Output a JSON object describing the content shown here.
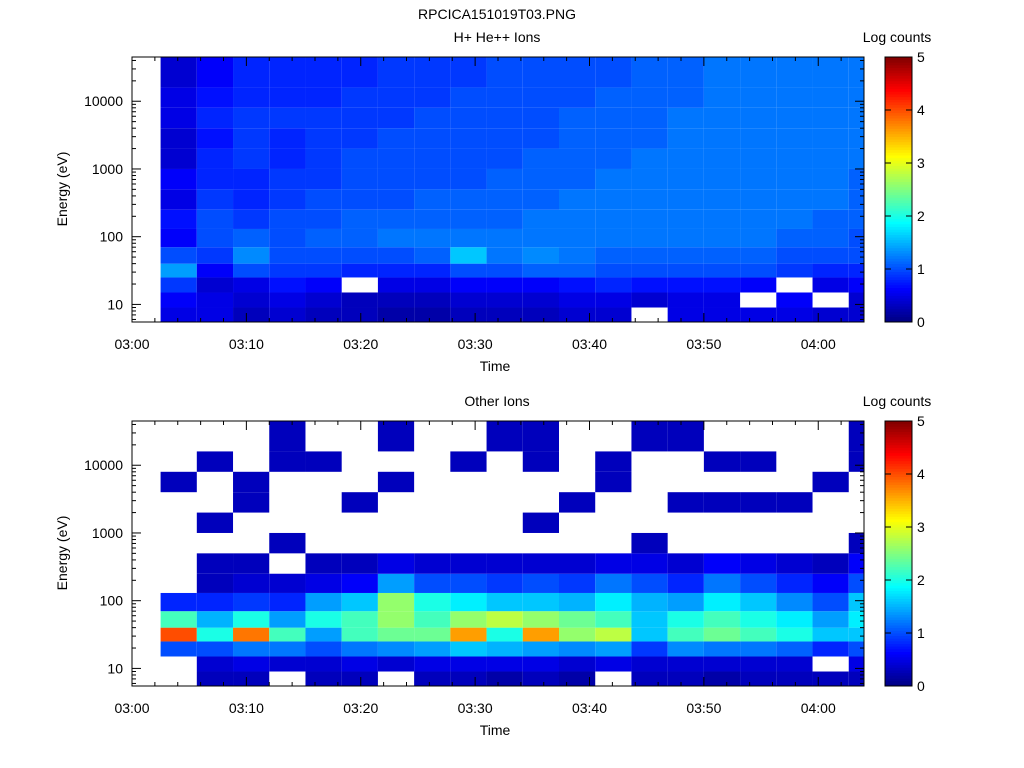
{
  "figure_title": "RPCICA151019T03.PNG",
  "colorscale": {
    "stops": [
      "#00007f",
      "#0000ff",
      "#0080ff",
      "#00ffff",
      "#80ff80",
      "#ffff00",
      "#ff8000",
      "#ff0000",
      "#800000"
    ]
  },
  "chart_data": [
    {
      "type": "heatmap",
      "title": "H+ He++ Ions",
      "xlabel": "Time",
      "ylabel": "Energy (eV)",
      "yscale": "log",
      "ylim": [
        5.5,
        45000
      ],
      "xlim_minutes_after_0300": [
        0,
        64
      ],
      "x_ticks": [
        "03:00",
        "03:10",
        "03:20",
        "03:30",
        "03:40",
        "03:50",
        "04:00"
      ],
      "y_ticks": [
        "10",
        "100",
        "1000",
        "10000"
      ],
      "colorbar": {
        "label": "Log counts",
        "range": [
          0,
          5
        ],
        "ticks": [
          "0",
          "1",
          "2",
          "3",
          "4",
          "5"
        ]
      },
      "time_bins": [
        "03:02:30",
        "03:05:40",
        "03:08:50",
        "03:12:00",
        "03:15:10",
        "03:18:20",
        "03:21:30",
        "03:24:40",
        "03:27:50",
        "03:31:00",
        "03:34:10",
        "03:37:20",
        "03:40:30",
        "03:43:40",
        "03:46:50",
        "03:50:00",
        "03:53:10",
        "03:56:20",
        "03:59:30",
        "04:02:40"
      ],
      "energy_band_edges_eV": [
        5.5,
        9,
        15,
        25,
        40,
        70,
        130,
        250,
        500,
        1000,
        2000,
        4000,
        8000,
        16000,
        45000
      ],
      "log_counts": [
        [
          0.5,
          0.6,
          0.9,
          1.4,
          1.0,
          0.6,
          0.7,
          0.5,
          0.6,
          0.4,
          0.4,
          0.5,
          0.5,
          0.4
        ],
        [
          0.5,
          0.5,
          0.4,
          0.6,
          0.9,
          1.0,
          1.0,
          0.9,
          0.8,
          0.8,
          0.7,
          0.8,
          0.7,
          0.6
        ],
        [
          0.3,
          0.4,
          0.5,
          1.0,
          1.3,
          1.1,
          0.9,
          0.8,
          0.8,
          0.9,
          0.9,
          0.9,
          0.8,
          0.8
        ],
        [
          0.4,
          0.5,
          0.7,
          0.9,
          1.0,
          1.0,
          1.0,
          0.9,
          0.9,
          0.8,
          0.8,
          0.9,
          0.8,
          0.8
        ],
        [
          0.3,
          0.4,
          0.6,
          0.9,
          1.0,
          1.1,
          1.0,
          1.0,
          0.9,
          0.9,
          0.9,
          0.9,
          0.8,
          0.8
        ],
        [
          0.3,
          0.3,
          null,
          0.8,
          1.0,
          1.1,
          1.1,
          1.0,
          1.0,
          1.0,
          0.9,
          0.9,
          0.9,
          0.8
        ],
        [
          0.2,
          0.3,
          0.5,
          0.8,
          1.0,
          1.2,
          1.1,
          1.0,
          1.0,
          1.0,
          1.0,
          0.9,
          0.9,
          0.9
        ],
        [
          0.2,
          0.3,
          0.5,
          0.8,
          1.1,
          1.2,
          1.1,
          1.1,
          1.0,
          1.0,
          1.0,
          1.0,
          0.9,
          0.9
        ],
        [
          0.3,
          0.4,
          0.6,
          1.0,
          1.6,
          1.2,
          1.1,
          1.1,
          1.0,
          1.0,
          1.0,
          1.0,
          1.0,
          0.9
        ],
        [
          0.3,
          0.4,
          0.6,
          1.0,
          1.2,
          1.2,
          1.1,
          1.1,
          1.1,
          1.0,
          1.0,
          1.0,
          1.0,
          1.0
        ],
        [
          0.3,
          0.4,
          0.6,
          1.1,
          1.3,
          1.2,
          1.2,
          1.1,
          1.1,
          1.1,
          1.0,
          1.0,
          1.0,
          1.0
        ],
        [
          0.4,
          0.5,
          0.7,
          1.1,
          1.2,
          1.2,
          1.2,
          1.2,
          1.1,
          1.1,
          1.1,
          1.1,
          1.0,
          1.0
        ],
        [
          0.4,
          0.5,
          0.8,
          1.0,
          1.1,
          1.2,
          1.2,
          1.2,
          1.2,
          1.1,
          1.1,
          1.1,
          1.1,
          1.0
        ],
        [
          null,
          0.4,
          0.7,
          1.0,
          1.1,
          1.2,
          1.2,
          1.2,
          1.2,
          1.2,
          1.1,
          1.1,
          1.1,
          1.1
        ],
        [
          0.5,
          0.5,
          0.7,
          1.0,
          1.1,
          1.2,
          1.2,
          1.2,
          1.2,
          1.2,
          1.2,
          1.2,
          1.1,
          1.1
        ],
        [
          0.5,
          0.5,
          0.7,
          1.0,
          1.1,
          1.2,
          1.2,
          1.2,
          1.2,
          1.2,
          1.2,
          1.2,
          1.2,
          1.2
        ],
        [
          0.5,
          null,
          0.6,
          1.0,
          1.1,
          1.2,
          1.2,
          1.2,
          1.2,
          1.2,
          1.2,
          1.2,
          1.2,
          1.2
        ],
        [
          0.5,
          0.6,
          null,
          0.9,
          1.0,
          1.1,
          1.2,
          1.2,
          1.2,
          1.2,
          1.2,
          1.2,
          1.2,
          1.2
        ],
        [
          0.4,
          null,
          0.5,
          0.8,
          1.0,
          1.1,
          1.1,
          1.2,
          1.2,
          1.2,
          1.2,
          1.2,
          1.2,
          1.2
        ],
        [
          0.4,
          0.4,
          0.6,
          0.8,
          1.0,
          1.0,
          1.1,
          1.1,
          1.1,
          1.2,
          1.2,
          1.2,
          1.2,
          1.2
        ]
      ]
    },
    {
      "type": "heatmap",
      "title": "Other Ions",
      "xlabel": "Time",
      "ylabel": "Energy (eV)",
      "yscale": "log",
      "ylim": [
        5.5,
        45000
      ],
      "xlim_minutes_after_0300": [
        0,
        64
      ],
      "x_ticks": [
        "03:00",
        "03:10",
        "03:20",
        "03:30",
        "03:40",
        "03:50",
        "04:00"
      ],
      "y_ticks": [
        "10",
        "100",
        "1000",
        "10000"
      ],
      "colorbar": {
        "label": "Log counts",
        "range": [
          0,
          5
        ],
        "ticks": [
          "0",
          "1",
          "2",
          "3",
          "4",
          "5"
        ]
      },
      "time_bins": [
        "03:02:30",
        "03:05:40",
        "03:08:50",
        "03:12:00",
        "03:15:10",
        "03:18:20",
        "03:21:30",
        "03:24:40",
        "03:27:50",
        "03:31:00",
        "03:34:10",
        "03:37:20",
        "03:40:30",
        "03:43:40",
        "03:46:50",
        "03:50:00",
        "03:53:10",
        "03:56:20",
        "03:59:30",
        "04:02:40"
      ],
      "energy_band_edges_eV": [
        5.5,
        9,
        15,
        25,
        40,
        70,
        130,
        250,
        500,
        1000,
        2000,
        4000,
        8000,
        16000,
        45000
      ],
      "log_counts": [
        [
          null,
          null,
          1.0,
          4.0,
          2.2,
          0.8,
          null,
          null,
          null,
          null,
          null,
          0.3,
          null,
          null
        ],
        [
          0.3,
          0.4,
          1.0,
          2.0,
          1.5,
          0.8,
          0.3,
          0.3,
          null,
          0.3,
          null,
          null,
          0.3,
          null
        ],
        [
          0.3,
          0.5,
          1.2,
          3.8,
          2.0,
          0.9,
          0.4,
          0.3,
          null,
          null,
          0.3,
          0.3,
          null,
          null
        ],
        [
          null,
          0.4,
          1.2,
          2.2,
          1.4,
          0.8,
          0.4,
          null,
          0.3,
          null,
          null,
          null,
          0.3,
          0.3
        ],
        [
          0.3,
          0.4,
          1.0,
          1.4,
          2.0,
          1.4,
          0.5,
          0.3,
          null,
          null,
          null,
          null,
          0.3,
          null
        ],
        [
          0.3,
          0.5,
          1.2,
          2.2,
          2.2,
          1.6,
          0.6,
          0.3,
          null,
          null,
          0.3,
          null,
          null,
          null
        ],
        [
          null,
          0.4,
          1.3,
          2.4,
          2.6,
          2.6,
          1.4,
          0.5,
          null,
          null,
          null,
          0.3,
          null,
          0.3
        ],
        [
          0.3,
          0.5,
          1.4,
          2.4,
          2.2,
          2.0,
          1.0,
          0.4,
          null,
          null,
          null,
          null,
          null,
          null
        ],
        [
          0.3,
          0.5,
          1.6,
          3.6,
          2.6,
          1.8,
          1.0,
          0.4,
          null,
          null,
          null,
          null,
          0.3,
          null
        ],
        [
          0.2,
          0.5,
          1.5,
          2.0,
          2.8,
          1.6,
          0.9,
          0.4,
          null,
          null,
          null,
          null,
          null,
          0.3
        ],
        [
          0.3,
          0.5,
          1.4,
          3.6,
          2.6,
          1.6,
          1.0,
          0.4,
          null,
          0.3,
          null,
          null,
          0.3,
          0.3
        ],
        [
          0.2,
          0.4,
          1.3,
          2.6,
          2.4,
          1.5,
          0.9,
          0.4,
          null,
          null,
          0.3,
          null,
          null,
          null
        ],
        [
          null,
          0.5,
          1.4,
          2.8,
          2.2,
          1.8,
          1.2,
          0.5,
          null,
          null,
          null,
          0.3,
          0.3,
          null
        ],
        [
          0.3,
          0.4,
          0.9,
          1.6,
          1.6,
          1.5,
          1.0,
          0.5,
          0.3,
          null,
          null,
          null,
          null,
          0.3
        ],
        [
          0.3,
          0.4,
          1.3,
          2.2,
          2.0,
          1.4,
          0.8,
          0.4,
          null,
          null,
          0.3,
          null,
          null,
          0.3
        ],
        [
          0.2,
          0.4,
          1.2,
          2.4,
          2.2,
          1.8,
          1.2,
          0.6,
          null,
          null,
          0.3,
          null,
          0.3,
          null
        ],
        [
          0.3,
          0.4,
          1.2,
          2.2,
          2.0,
          1.6,
          1.0,
          0.5,
          null,
          null,
          0.3,
          null,
          0.3,
          null
        ],
        [
          0.3,
          0.4,
          1.1,
          2.0,
          1.8,
          1.3,
          0.8,
          0.4,
          null,
          null,
          0.3,
          null,
          null,
          null
        ],
        [
          0.3,
          null,
          0.8,
          1.6,
          1.4,
          1.0,
          0.6,
          0.3,
          null,
          null,
          null,
          0.3,
          null,
          null
        ],
        [
          0.3,
          0.5,
          1.0,
          1.6,
          1.8,
          1.6,
          1.0,
          0.6,
          0.3,
          null,
          null,
          null,
          0.3,
          0.3
        ]
      ]
    }
  ]
}
